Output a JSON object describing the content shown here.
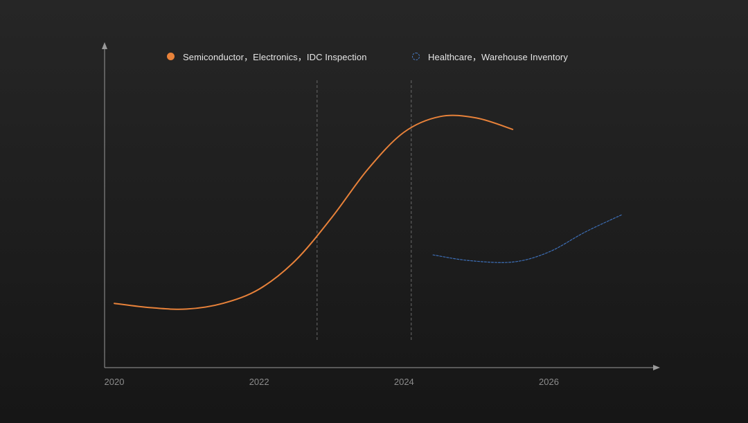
{
  "chart_data": {
    "type": "line",
    "title": "",
    "xlabel": "",
    "ylabel": "",
    "x_ticks": [
      "2020",
      "2022",
      "2024",
      "2026"
    ],
    "xlim": [
      2020,
      2027.2
    ],
    "ylim": [
      0,
      10
    ],
    "reference_lines_x": [
      2022.8,
      2024.1
    ],
    "legend_position": "top",
    "grid": false,
    "series": [
      {
        "name": "Semiconductor，Electronics，IDC Inspection",
        "color": "#e8823a",
        "style": "solid",
        "marker": "filled-circle",
        "points": [
          [
            2020.0,
            1.5
          ],
          [
            2020.5,
            1.35
          ],
          [
            2021.0,
            1.3
          ],
          [
            2021.5,
            1.5
          ],
          [
            2022.0,
            2.0
          ],
          [
            2022.5,
            3.0
          ],
          [
            2023.0,
            4.5
          ],
          [
            2023.5,
            6.2
          ],
          [
            2024.0,
            7.5
          ],
          [
            2024.5,
            8.05
          ],
          [
            2025.0,
            8.0
          ],
          [
            2025.5,
            7.6
          ]
        ]
      },
      {
        "name": "Healthcare，Warehouse  Inventory",
        "color": "#3d6fb8",
        "style": "dashed",
        "marker": "open-circle",
        "points": [
          [
            2024.4,
            3.2
          ],
          [
            2024.9,
            3.0
          ],
          [
            2025.5,
            2.95
          ],
          [
            2026.0,
            3.3
          ],
          [
            2026.5,
            4.0
          ],
          [
            2027.0,
            4.6
          ]
        ]
      }
    ]
  }
}
